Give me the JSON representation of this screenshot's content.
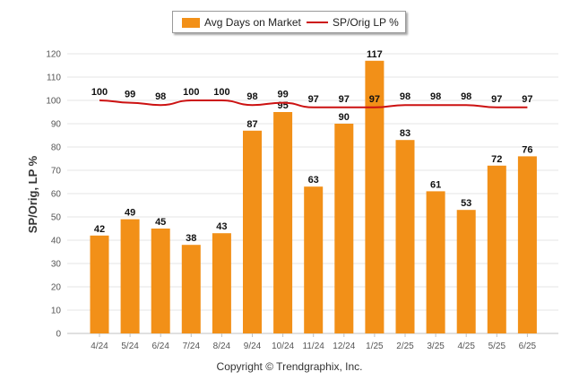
{
  "legend": {
    "bar_label": "Avg Days on Market",
    "line_label": "SP/Orig LP %"
  },
  "copyright": "Copyright © Trendgraphix, Inc.",
  "chart_data": {
    "type": "bar",
    "ylabel": "SP/Orig, LP %",
    "ylim": [
      0,
      120
    ],
    "ytick_step": 10,
    "grid": true,
    "legend_position": "top-center",
    "categories": [
      "4/24",
      "5/24",
      "6/24",
      "7/24",
      "8/24",
      "9/24",
      "10/24",
      "11/24",
      "12/24",
      "1/25",
      "2/25",
      "3/25",
      "4/25",
      "5/25",
      "6/25"
    ],
    "series": [
      {
        "name": "Avg Days on Market",
        "type": "bar",
        "color": "#f29018",
        "values": [
          42,
          49,
          45,
          38,
          43,
          87,
          95,
          63,
          90,
          117,
          83,
          61,
          53,
          72,
          76
        ]
      },
      {
        "name": "SP/Orig LP %",
        "type": "line",
        "color": "#cc1111",
        "values": [
          100,
          99,
          98,
          100,
          100,
          98,
          99,
          97,
          97,
          97,
          98,
          98,
          98,
          97,
          97
        ]
      }
    ]
  }
}
